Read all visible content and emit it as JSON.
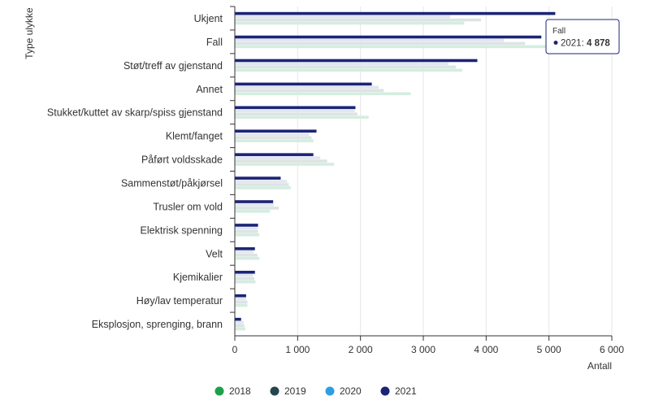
{
  "chart_data": {
    "type": "bar",
    "orientation": "horizontal",
    "categories": [
      "Ukjent",
      "Fall",
      "Støt/treff av gjenstand",
      "Annet",
      "Stukket/kuttet av skarp/spiss gjenstand",
      "Klemt/fanget",
      "Påført voldsskade",
      "Sammenstøt/påkjørsel",
      "Trusler om vold",
      "Elektrisk spenning",
      "Velt",
      "Kjemikalier",
      "Høy/lav temperatur",
      "Eksplosjon, sprenging, brann"
    ],
    "series": [
      {
        "name": "2018",
        "color": "#d4ede0",
        "values": [
          3650,
          5100,
          3620,
          2800,
          2130,
          1250,
          1580,
          890,
          560,
          390,
          390,
          330,
          200,
          170
        ]
      },
      {
        "name": "2019",
        "color": "#dde4e3",
        "values": [
          3920,
          4620,
          3520,
          2370,
          1950,
          1220,
          1470,
          860,
          700,
          370,
          360,
          310,
          200,
          150
        ]
      },
      {
        "name": "2020",
        "color": "#e1e7f0",
        "values": [
          3430,
          4280,
          3400,
          2290,
          1910,
          1180,
          1360,
          830,
          620,
          360,
          300,
          290,
          180,
          140
        ]
      },
      {
        "name": "2021",
        "color": "#1b2476",
        "values": [
          5100,
          4878,
          3860,
          2180,
          1920,
          1300,
          1250,
          730,
          610,
          370,
          320,
          320,
          180,
          100
        ]
      }
    ],
    "xlabel": "Antall",
    "ylabel": "Type ulykke",
    "xlim": [
      0,
      6000
    ],
    "xticks": [
      0,
      1000,
      2000,
      3000,
      4000,
      5000,
      6000
    ],
    "xtick_labels": [
      "0",
      "1 000",
      "2 000",
      "3 000",
      "4 000",
      "5 000",
      "6 000"
    ],
    "grid": true,
    "legend_position": "bottom",
    "legend": [
      {
        "label": "2018",
        "color": "#1ba14b"
      },
      {
        "label": "2019",
        "color": "#24474e"
      },
      {
        "label": "2020",
        "color": "#2d9fe0"
      },
      {
        "label": "2021",
        "color": "#1b2476"
      }
    ],
    "tooltip": {
      "title": "Fall",
      "series_label": "2021: ",
      "value_label": "4 878",
      "color": "#1b2476"
    }
  }
}
